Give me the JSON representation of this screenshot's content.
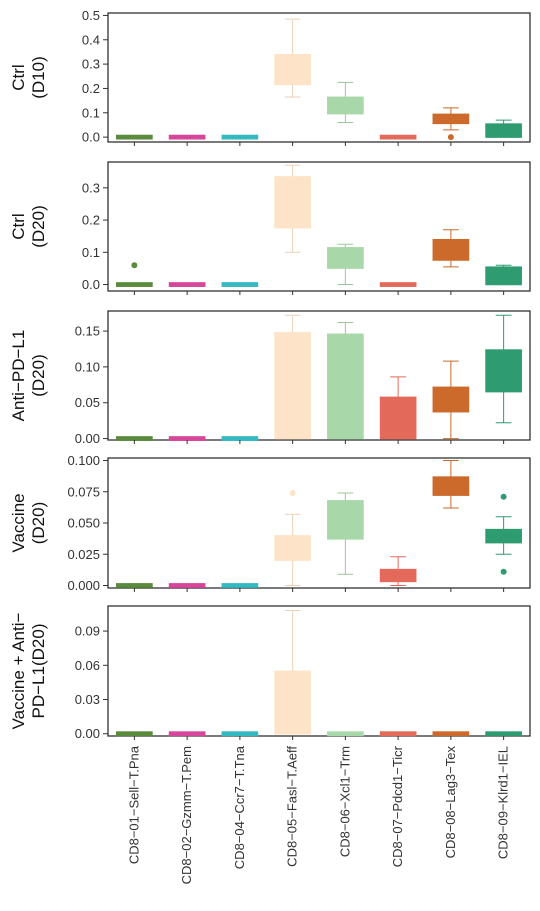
{
  "chart_data": {
    "type": "box",
    "categories": [
      "CD8−01−Sell−T.Pna",
      "CD8−02−Gzmm−T.Pem",
      "CD8−04−Ccr7−T.Tna",
      "CD8−05−Fasl−T.Aeff",
      "CD8−06−Xcl1−Trm",
      "CD8−07−Pdcd1−Ticr",
      "CD8−08−Lag3−Tex",
      "CD8−09−Klrd1−IEL"
    ],
    "colors": [
      "#5a8a3c",
      "#d6479b",
      "#34b8c2",
      "#fde4c8",
      "#a8d8aa",
      "#e36a5a",
      "#cc6a2c",
      "#2e9c70"
    ],
    "panels": [
      {
        "label_lines": [
          "Ctrl",
          "(D10)"
        ],
        "ylim": [
          -0.02,
          0.51
        ],
        "yticks": [
          0.0,
          0.1,
          0.2,
          0.3,
          0.4,
          0.5
        ],
        "yticklabels": [
          "0.0",
          "0.1",
          "0.2",
          "0.3",
          "0.4",
          "0.5"
        ],
        "boxes": [
          {
            "min": 0,
            "q1": 0,
            "median": 0,
            "q3": 0,
            "max": 0,
            "outliers": []
          },
          {
            "min": 0,
            "q1": 0,
            "median": 0,
            "q3": 0,
            "max": 0,
            "outliers": []
          },
          {
            "min": 0,
            "q1": 0,
            "median": 0,
            "q3": 0,
            "max": 0,
            "outliers": []
          },
          {
            "min": 0.165,
            "q1": 0.215,
            "median": 0.22,
            "q3": 0.34,
            "max": 0.485,
            "outliers": []
          },
          {
            "min": 0.06,
            "q1": 0.095,
            "median": 0.1,
            "q3": 0.165,
            "max": 0.225,
            "outliers": []
          },
          {
            "min": 0,
            "q1": 0,
            "median": 0,
            "q3": 0,
            "max": 0,
            "outliers": []
          },
          {
            "min": 0.03,
            "q1": 0.055,
            "median": 0.06,
            "q3": 0.095,
            "max": 0.12,
            "outliers": [
              0.0
            ]
          },
          {
            "min": 0,
            "q1": 0,
            "median": 0,
            "q3": 0.055,
            "max": 0.07,
            "outliers": []
          }
        ]
      },
      {
        "label_lines": [
          "Ctrl",
          "(D20)"
        ],
        "ylim": [
          -0.02,
          0.38
        ],
        "yticks": [
          0.0,
          0.1,
          0.2,
          0.3
        ],
        "yticklabels": [
          "0.0",
          "0.1",
          "0.2",
          "0.3"
        ],
        "boxes": [
          {
            "min": 0,
            "q1": 0,
            "median": 0,
            "q3": 0,
            "max": 0,
            "outliers": [
              0.06
            ]
          },
          {
            "min": 0,
            "q1": 0,
            "median": 0,
            "q3": 0,
            "max": 0,
            "outliers": []
          },
          {
            "min": 0,
            "q1": 0,
            "median": 0,
            "q3": 0,
            "max": 0,
            "outliers": []
          },
          {
            "min": 0.1,
            "q1": 0.175,
            "median": 0.18,
            "q3": 0.335,
            "max": 0.37,
            "outliers": []
          },
          {
            "min": 0.0,
            "q1": 0.05,
            "median": 0.055,
            "q3": 0.115,
            "max": 0.125,
            "outliers": []
          },
          {
            "min": 0,
            "q1": 0,
            "median": 0,
            "q3": 0,
            "max": 0,
            "outliers": []
          },
          {
            "min": 0.055,
            "q1": 0.075,
            "median": 0.08,
            "q3": 0.14,
            "max": 0.17,
            "outliers": []
          },
          {
            "min": 0,
            "q1": 0,
            "median": 0,
            "q3": 0.055,
            "max": 0.06,
            "outliers": []
          }
        ]
      },
      {
        "label_lines": [
          "Anti−PD−L1",
          "(D20)"
        ],
        "ylim": [
          -0.002,
          0.178
        ],
        "yticks": [
          0.0,
          0.05,
          0.1,
          0.15
        ],
        "yticklabels": [
          "0.00",
          "0.05",
          "0.10",
          "0.15"
        ],
        "boxes": [
          {
            "min": 0,
            "q1": 0,
            "median": 0,
            "q3": 0,
            "max": 0,
            "outliers": []
          },
          {
            "min": 0,
            "q1": 0,
            "median": 0,
            "q3": 0,
            "max": 0,
            "outliers": []
          },
          {
            "min": 0,
            "q1": 0,
            "median": 0,
            "q3": 0,
            "max": 0,
            "outliers": []
          },
          {
            "min": 0,
            "q1": 0,
            "median": 0,
            "q3": 0.148,
            "max": 0.172,
            "outliers": []
          },
          {
            "min": 0,
            "q1": 0,
            "median": 0,
            "q3": 0.146,
            "max": 0.162,
            "outliers": []
          },
          {
            "min": 0,
            "q1": 0,
            "median": 0,
            "q3": 0.058,
            "max": 0.086,
            "outliers": []
          },
          {
            "min": 0,
            "q1": 0.037,
            "median": 0.04,
            "q3": 0.072,
            "max": 0.108,
            "outliers": []
          },
          {
            "min": 0.022,
            "q1": 0.065,
            "median": 0.07,
            "q3": 0.124,
            "max": 0.172,
            "outliers": []
          }
        ]
      },
      {
        "label_lines": [
          "Vaccine",
          "(D20)"
        ],
        "ylim": [
          -0.002,
          0.102
        ],
        "yticks": [
          0.0,
          0.025,
          0.05,
          0.075,
          0.1
        ],
        "yticklabels": [
          "0.000",
          "0.025",
          "0.050",
          "0.075",
          "0.100"
        ],
        "boxes": [
          {
            "min": 0,
            "q1": 0,
            "median": 0,
            "q3": 0,
            "max": 0,
            "outliers": []
          },
          {
            "min": 0,
            "q1": 0,
            "median": 0,
            "q3": 0,
            "max": 0,
            "outliers": []
          },
          {
            "min": 0,
            "q1": 0,
            "median": 0,
            "q3": 0,
            "max": 0,
            "outliers": []
          },
          {
            "min": 0.0,
            "q1": 0.02,
            "median": 0.022,
            "q3": 0.04,
            "max": 0.057,
            "outliers": [
              0.074
            ]
          },
          {
            "min": 0.009,
            "q1": 0.037,
            "median": 0.04,
            "q3": 0.068,
            "max": 0.074,
            "outliers": []
          },
          {
            "min": 0.0,
            "q1": 0.003,
            "median": 0.004,
            "q3": 0.013,
            "max": 0.023,
            "outliers": []
          },
          {
            "min": 0.062,
            "q1": 0.072,
            "median": 0.073,
            "q3": 0.087,
            "max": 0.1,
            "outliers": []
          },
          {
            "min": 0.025,
            "q1": 0.034,
            "median": 0.035,
            "q3": 0.045,
            "max": 0.055,
            "outliers": [
              0.011,
              0.071
            ]
          }
        ]
      },
      {
        "label_lines": [
          "Vaccine + Anti−",
          "PD−L1(D20)"
        ],
        "ylim": [
          -0.002,
          0.112
        ],
        "yticks": [
          0.0,
          0.03,
          0.06,
          0.09
        ],
        "yticklabels": [
          "0.00",
          "0.03",
          "0.06",
          "0.09"
        ],
        "boxes": [
          {
            "min": 0,
            "q1": 0,
            "median": 0,
            "q3": 0,
            "max": 0,
            "outliers": []
          },
          {
            "min": 0,
            "q1": 0,
            "median": 0,
            "q3": 0,
            "max": 0,
            "outliers": []
          },
          {
            "min": 0,
            "q1": 0,
            "median": 0,
            "q3": 0,
            "max": 0,
            "outliers": []
          },
          {
            "min": 0,
            "q1": 0,
            "median": 0,
            "q3": 0.055,
            "max": 0.108,
            "outliers": []
          },
          {
            "min": 0,
            "q1": 0,
            "median": 0,
            "q3": 0,
            "max": 0,
            "outliers": []
          },
          {
            "min": 0,
            "q1": 0,
            "median": 0,
            "q3": 0,
            "max": 0,
            "outliers": []
          },
          {
            "min": 0,
            "q1": 0,
            "median": 0,
            "q3": 0,
            "max": 0,
            "outliers": []
          },
          {
            "min": 0,
            "q1": 0,
            "median": 0,
            "q3": 0,
            "max": 0,
            "outliers": []
          }
        ]
      }
    ]
  }
}
